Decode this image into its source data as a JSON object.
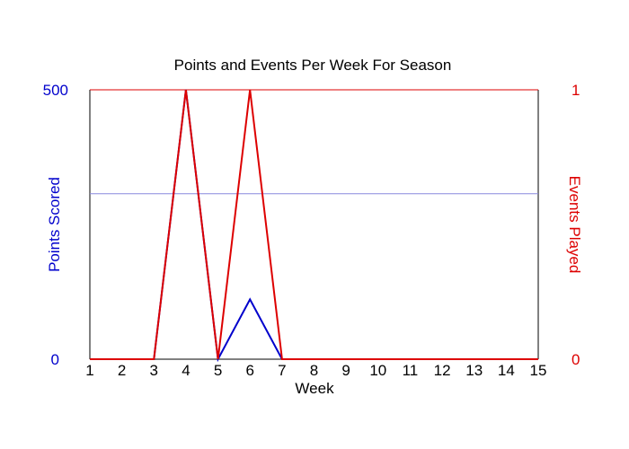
{
  "chart_data": {
    "type": "line",
    "title": "Points and Events Per Week For Season",
    "xlabel": "Week",
    "x": [
      1,
      2,
      3,
      4,
      5,
      6,
      7,
      8,
      9,
      10,
      11,
      12,
      13,
      14,
      15
    ],
    "xlim": [
      1,
      15
    ],
    "y_left": {
      "label": "Points Scored",
      "lim": [
        0,
        500
      ],
      "tick_labels": [
        "0",
        "500"
      ],
      "color": "#0000cc"
    },
    "y_right": {
      "label": "Events Played",
      "lim": [
        0,
        1
      ],
      "tick_labels": [
        "0",
        "1"
      ],
      "color": "#dd0000"
    },
    "reference_line": {
      "axis": "left",
      "value": 307,
      "color": "#8888dd"
    },
    "series": [
      {
        "axis": "left",
        "color": "#0000cc",
        "values": [
          0,
          0,
          0,
          500,
          0,
          111,
          0,
          0,
          0,
          0,
          0,
          0,
          0,
          0,
          0
        ]
      },
      {
        "axis": "right",
        "color": "#dd0000",
        "values": [
          0,
          0,
          0,
          1,
          0,
          1,
          0,
          0,
          0,
          0,
          0,
          0,
          0,
          0,
          0
        ]
      }
    ],
    "grid": false,
    "legend": "none"
  }
}
